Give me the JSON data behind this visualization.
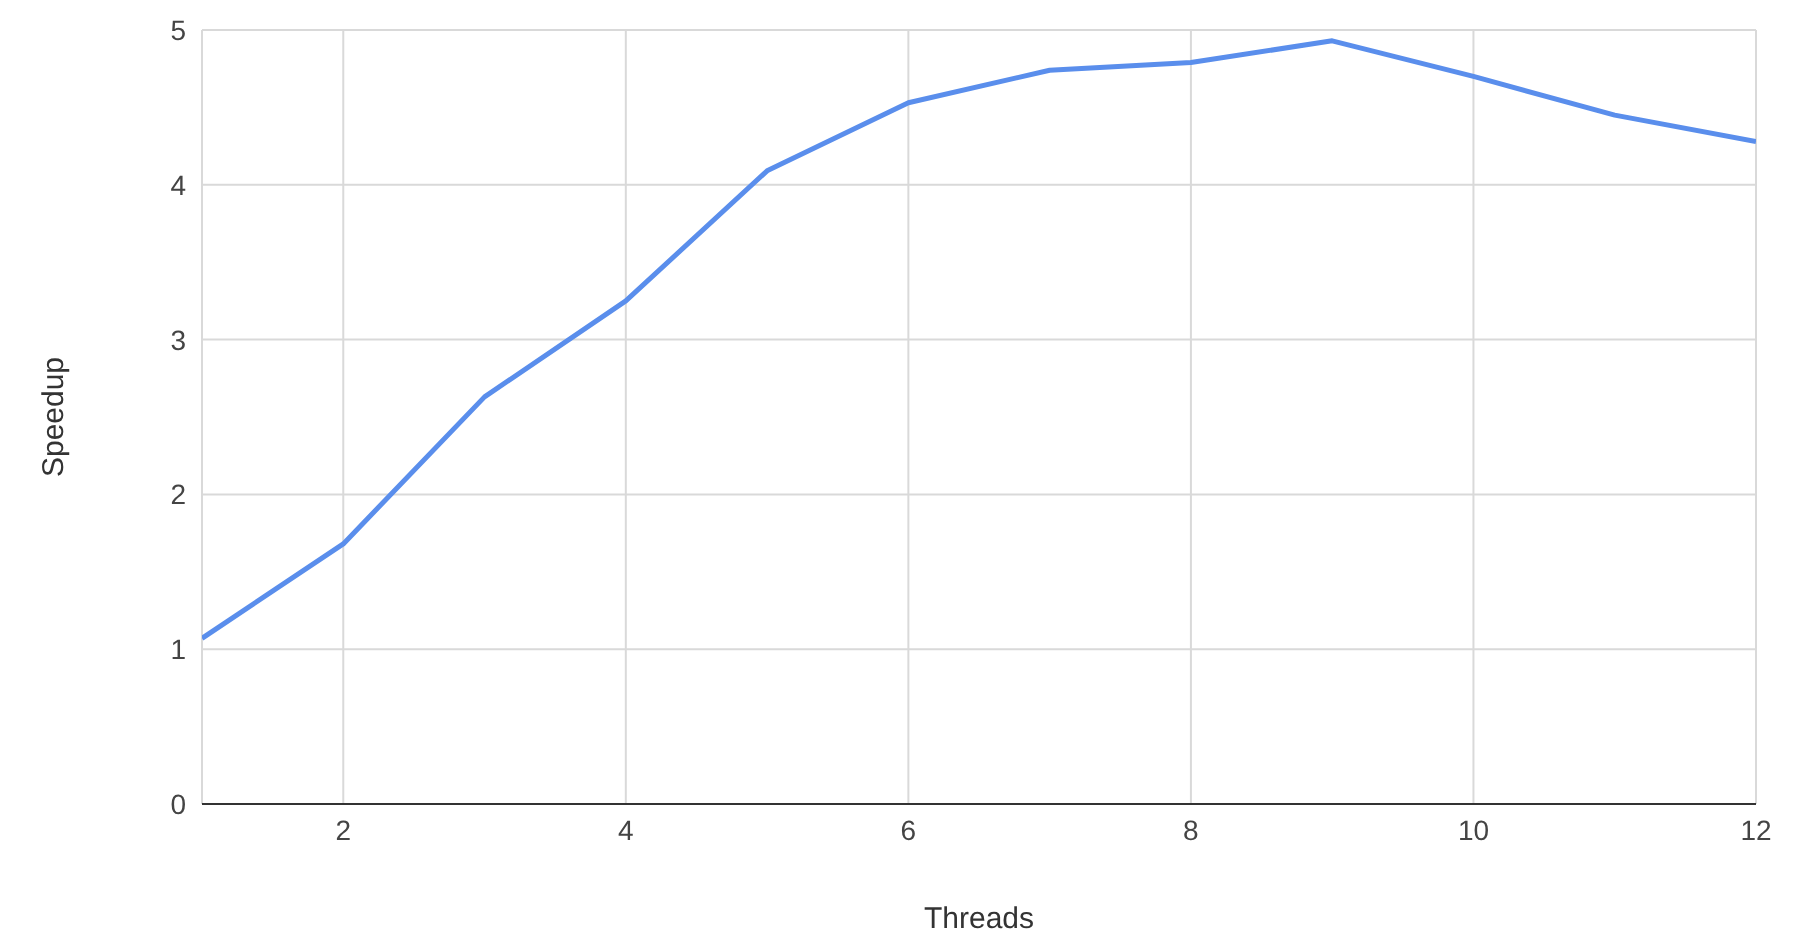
{
  "chart_data": {
    "type": "line",
    "xlabel": "Threads",
    "ylabel": "Speedup",
    "x": [
      1,
      2,
      3,
      4,
      5,
      6,
      7,
      8,
      9,
      10,
      11,
      12
    ],
    "series": [
      {
        "color": "#5a8eec",
        "values": [
          1.07,
          1.68,
          2.63,
          3.25,
          4.09,
          4.53,
          4.74,
          4.79,
          4.93,
          4.7,
          4.45,
          4.28
        ]
      }
    ],
    "xlim": [
      1,
      12
    ],
    "xticks": [
      2,
      4,
      6,
      8,
      10,
      12
    ],
    "ylim": [
      0,
      5
    ],
    "yticks": [
      0,
      1,
      2,
      3,
      4,
      5
    ],
    "grid": true,
    "legend": false,
    "marker": "none",
    "line_style": "solid"
  }
}
